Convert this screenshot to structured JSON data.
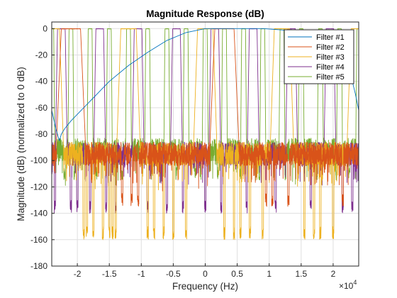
{
  "chart_data": {
    "type": "line",
    "title": "Magnitude Response (dB)",
    "xlabel": "Frequency (Hz)",
    "ylabel": "Magnitude (dB) (normalized to 0 dB)",
    "x_exponent_label": "×10",
    "x_exponent_power": "4",
    "xlim": [
      -24000,
      24000
    ],
    "ylim": [
      -180,
      5
    ],
    "x_ticks": [
      -20000,
      -15000,
      -10000,
      -5000,
      0,
      5000,
      10000,
      15000,
      20000
    ],
    "x_tick_labels": [
      "-2",
      "-1.5",
      "-1",
      "-0.5",
      "0",
      "0.5",
      "1",
      "1.5",
      "2"
    ],
    "y_ticks": [
      0,
      -20,
      -40,
      -60,
      -80,
      -100,
      -120,
      -140,
      -160,
      -180
    ],
    "y_tick_labels": [
      "0",
      "-20",
      "-40",
      "-60",
      "-80",
      "-100",
      "-120",
      "-140",
      "-160",
      "-180"
    ],
    "grid": true,
    "legend_position": "top-right",
    "series": [
      {
        "name": "Filter #1",
        "color": "#0072BD",
        "kind": "lowpass",
        "passband_center": 0,
        "passband_halfwidth": 1500,
        "period": 48000,
        "stopband_floor_db": -85,
        "x": [
          -24000,
          -23400,
          -23000,
          -22800,
          -22500,
          -22000,
          -21000,
          -19000,
          -17000,
          -15000,
          -12000,
          -9000,
          -6000,
          -3000,
          0,
          3000,
          6000,
          9000,
          12000,
          15000,
          18000,
          21000,
          22500,
          23500,
          24000
        ],
        "y": [
          -62,
          -75,
          -82,
          -85,
          -80,
          -76,
          -70,
          -60,
          -50,
          -40,
          -28,
          -18,
          -9,
          -3,
          0,
          0,
          0,
          0,
          -1,
          -3,
          -8,
          -18,
          -30,
          -50,
          -62
        ]
      },
      {
        "name": "Filter #2",
        "color": "#D95319",
        "kind": "comb",
        "passband_halfwidth": 1500,
        "period": 24000,
        "offset": 3000,
        "stopband_floor_db": -85,
        "dips": [
          -23000,
          -13000,
          -11500,
          -10500,
          2000,
          9500,
          10500,
          13000,
          21500
        ],
        "dip_depth_db": -125
      },
      {
        "name": "Filter #3",
        "color": "#EDB120",
        "kind": "comb",
        "passband_halfwidth": 1200,
        "period": 12000,
        "offset": 0,
        "stopband_floor_db": -85,
        "dips": [
          -19000,
          -18500,
          -17500,
          -16000,
          -15000,
          -14500,
          -14000,
          -9000,
          -8000,
          -6500,
          -5000,
          -3000,
          3000,
          4500,
          5500,
          7000,
          9000,
          15500,
          17000,
          18000,
          20000
        ],
        "dip_depth_db": -150
      },
      {
        "name": "Filter #4",
        "color": "#7E2F8E",
        "kind": "comb",
        "passband_halfwidth": 600,
        "period": 6000,
        "offset": 1500,
        "stopband_floor_db": -85,
        "dips": [
          -23500,
          -22500,
          -21000,
          -20000,
          -18000,
          -15500,
          -14000,
          -11000,
          -9000,
          -6000,
          -3500,
          0,
          2500,
          6500,
          8000,
          11000,
          14000,
          16500,
          19000,
          21500,
          23000
        ],
        "dip_depth_db": -130
      },
      {
        "name": "Filter #5",
        "color": "#77AC30",
        "kind": "comb",
        "passband_halfwidth": 300,
        "period": 3000,
        "offset": 0,
        "stopband_floor_db": -82,
        "dips": [
          -22000,
          -20500,
          -17000,
          -13000,
          -8500,
          -4500,
          -1500,
          2000,
          5500,
          8500,
          12500,
          17500,
          20500,
          22500
        ],
        "dip_depth_db": -105
      }
    ]
  }
}
